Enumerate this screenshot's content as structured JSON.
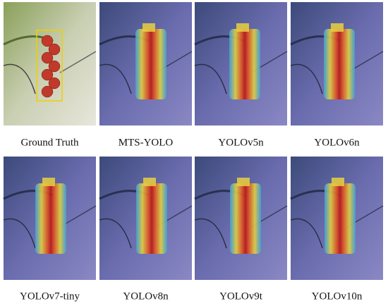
{
  "panels": [
    {
      "caption": "Ground Truth"
    },
    {
      "caption": "MTS-YOLO"
    },
    {
      "caption": "YOLOv5n"
    },
    {
      "caption": "YOLOv6n"
    },
    {
      "caption": "YOLOv7-tiny"
    },
    {
      "caption": "YOLOv8n"
    },
    {
      "caption": "YOLOv9t"
    },
    {
      "caption": "YOLOv10n"
    }
  ]
}
